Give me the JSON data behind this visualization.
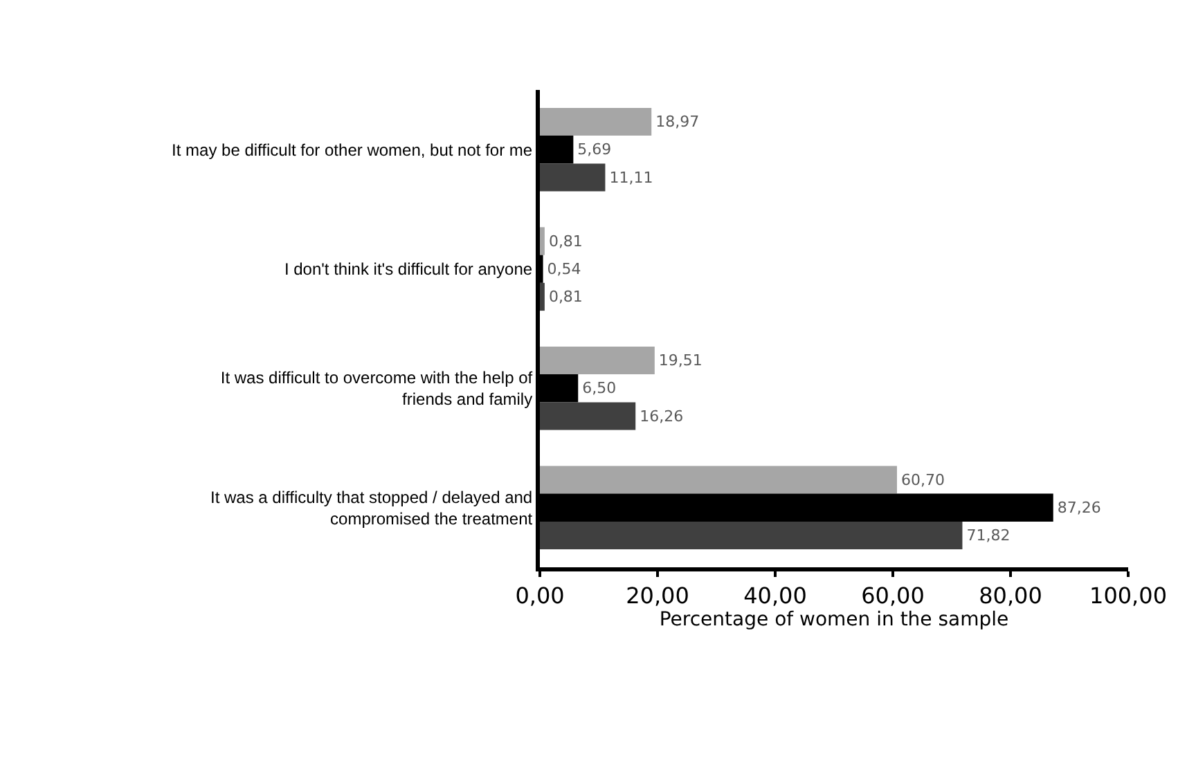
{
  "chart_data": {
    "type": "bar",
    "orientation": "horizontal",
    "xlabel": "Percentage of women in the sample",
    "categories": [
      "It may be difficult for other women, but not for me",
      "I don't think it's difficult for anyone",
      "It was difficult to overcome with the help of friends and family",
      "It was a difficulty that stopped / delayed and compromised the treatment"
    ],
    "series": [
      {
        "color": "#a6a6a6",
        "values": [
          18.97,
          0.81,
          19.51,
          60.7
        ],
        "value_labels": [
          "18,97",
          "0,81",
          "19,51",
          "60,70"
        ]
      },
      {
        "color": "#000000",
        "values": [
          5.69,
          0.54,
          6.5,
          87.26
        ],
        "value_labels": [
          "5,69",
          "0,54",
          "6,50",
          "87,26"
        ]
      },
      {
        "color": "#404040",
        "values": [
          11.11,
          0.81,
          16.26,
          71.82
        ],
        "value_labels": [
          "11,11",
          "0,81",
          "16,26",
          "71,82"
        ]
      }
    ],
    "xlim": [
      0,
      100
    ],
    "xticks": [
      {
        "value": 0,
        "label": "0,00"
      },
      {
        "value": 20,
        "label": "20,00"
      },
      {
        "value": 40,
        "label": "40,00"
      },
      {
        "value": 60,
        "label": "60,00"
      },
      {
        "value": 80,
        "label": "80,00"
      },
      {
        "value": 100,
        "label": "100,00"
      }
    ],
    "grid": false
  }
}
